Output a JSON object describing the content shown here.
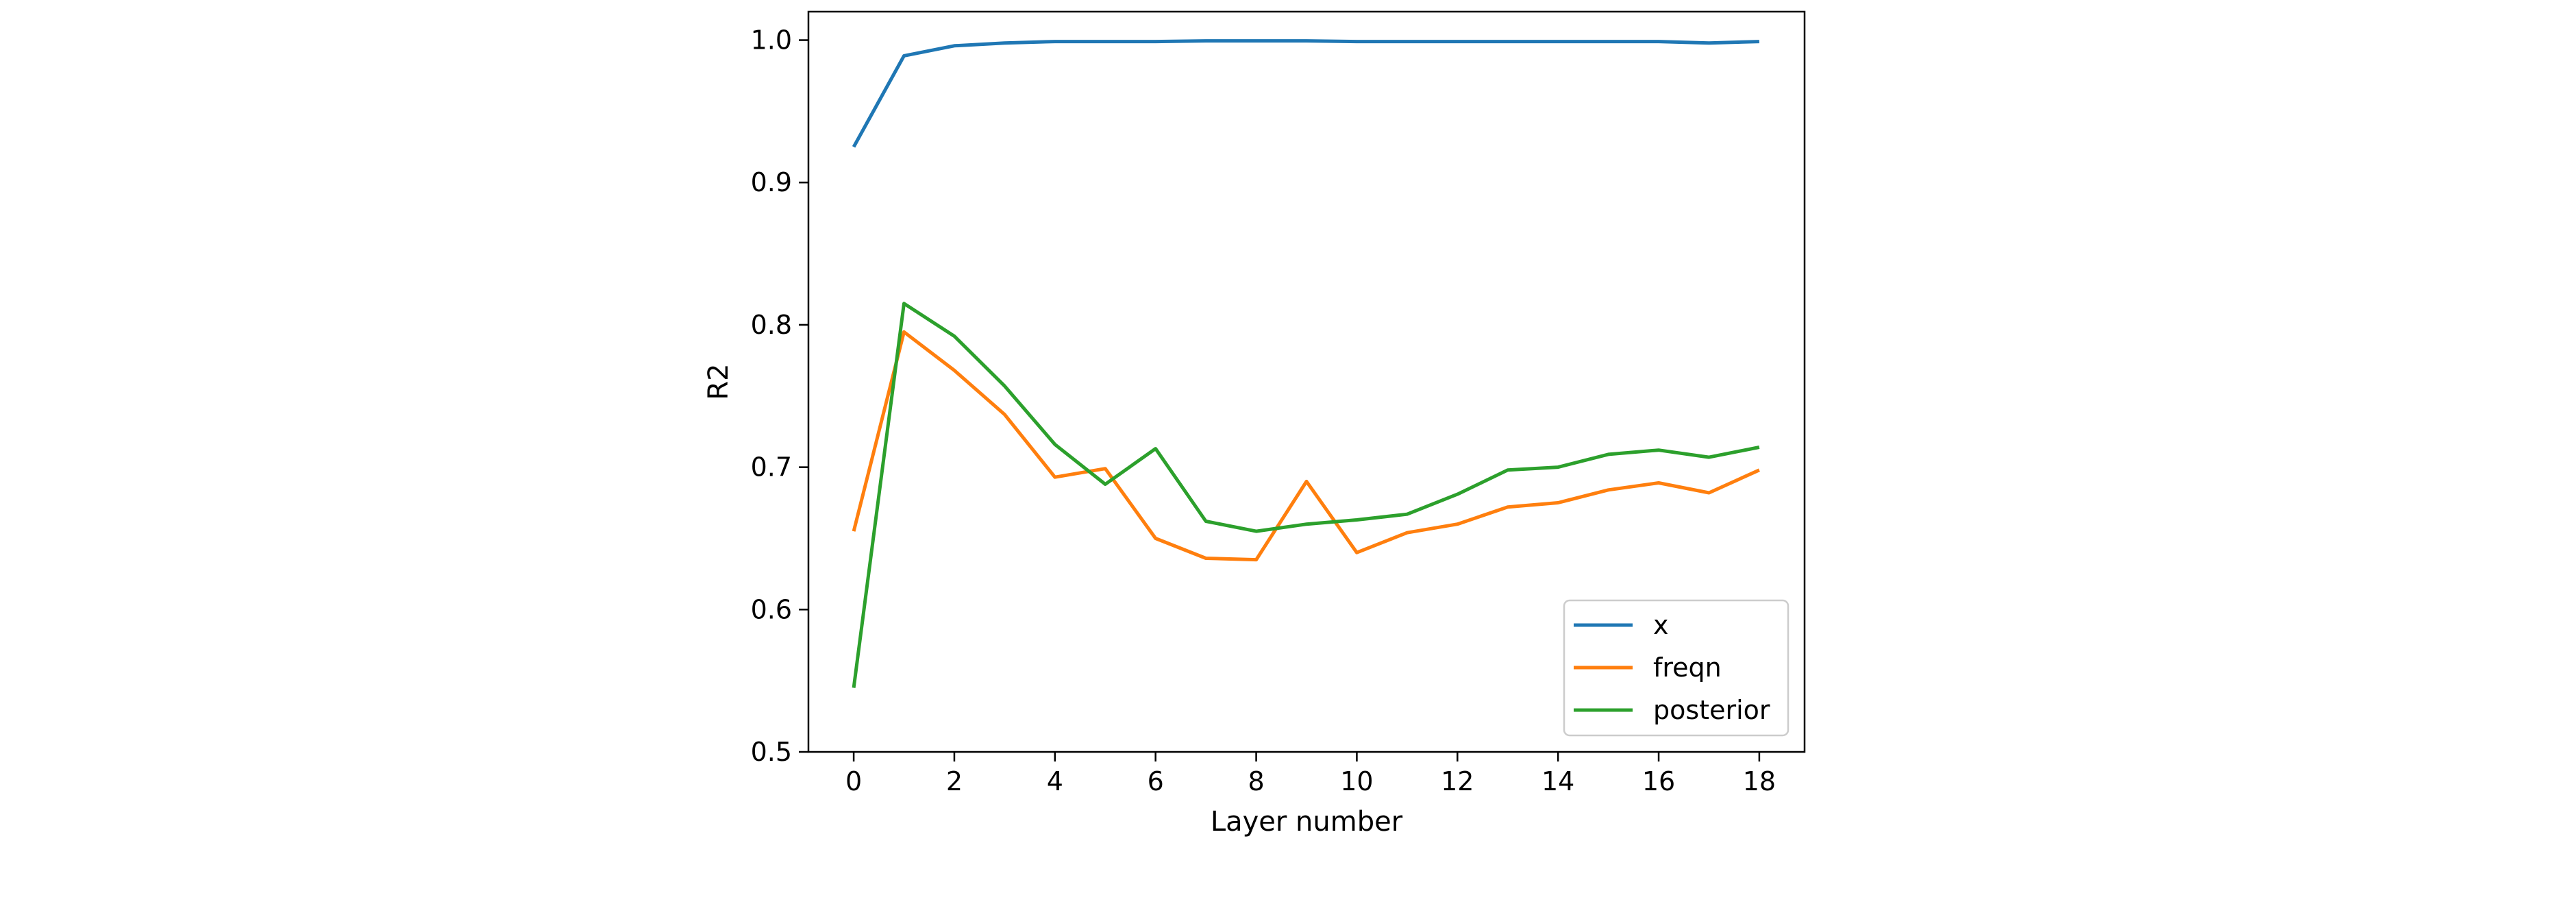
{
  "chart_data": {
    "type": "line",
    "title": "",
    "xlabel": "Layer number",
    "ylabel": "R2",
    "xlim": [
      -0.9,
      18.9
    ],
    "ylim": [
      0.5,
      1.02
    ],
    "xticks": [
      "0",
      "2",
      "4",
      "6",
      "8",
      "10",
      "12",
      "14",
      "16",
      "18"
    ],
    "yticks": [
      "0.5",
      "0.6",
      "0.7",
      "0.8",
      "0.9",
      "1.0"
    ],
    "grid": false,
    "legend": "lower-right",
    "x": [
      0,
      1,
      2,
      3,
      4,
      5,
      6,
      7,
      8,
      9,
      10,
      11,
      12,
      13,
      14,
      15,
      16,
      17,
      18
    ],
    "series": [
      {
        "name": "x",
        "color": "#1f77b4",
        "values": [
          0.925,
          0.989,
          0.996,
          0.998,
          0.999,
          0.999,
          0.999,
          0.9995,
          0.9995,
          0.9995,
          0.999,
          0.999,
          0.999,
          0.999,
          0.999,
          0.999,
          0.999,
          0.998,
          0.999
        ]
      },
      {
        "name": "freqn",
        "color": "#ff7f0e",
        "values": [
          0.655,
          0.795,
          0.768,
          0.737,
          0.693,
          0.699,
          0.65,
          0.636,
          0.635,
          0.69,
          0.64,
          0.654,
          0.66,
          0.672,
          0.675,
          0.684,
          0.689,
          0.682,
          0.698
        ]
      },
      {
        "name": "posterior",
        "color": "#2ca02c",
        "values": [
          0.545,
          0.815,
          0.792,
          0.757,
          0.716,
          0.688,
          0.713,
          0.662,
          0.655,
          0.66,
          0.663,
          0.667,
          0.681,
          0.698,
          0.7,
          0.709,
          0.712,
          0.707,
          0.714
        ]
      }
    ]
  }
}
